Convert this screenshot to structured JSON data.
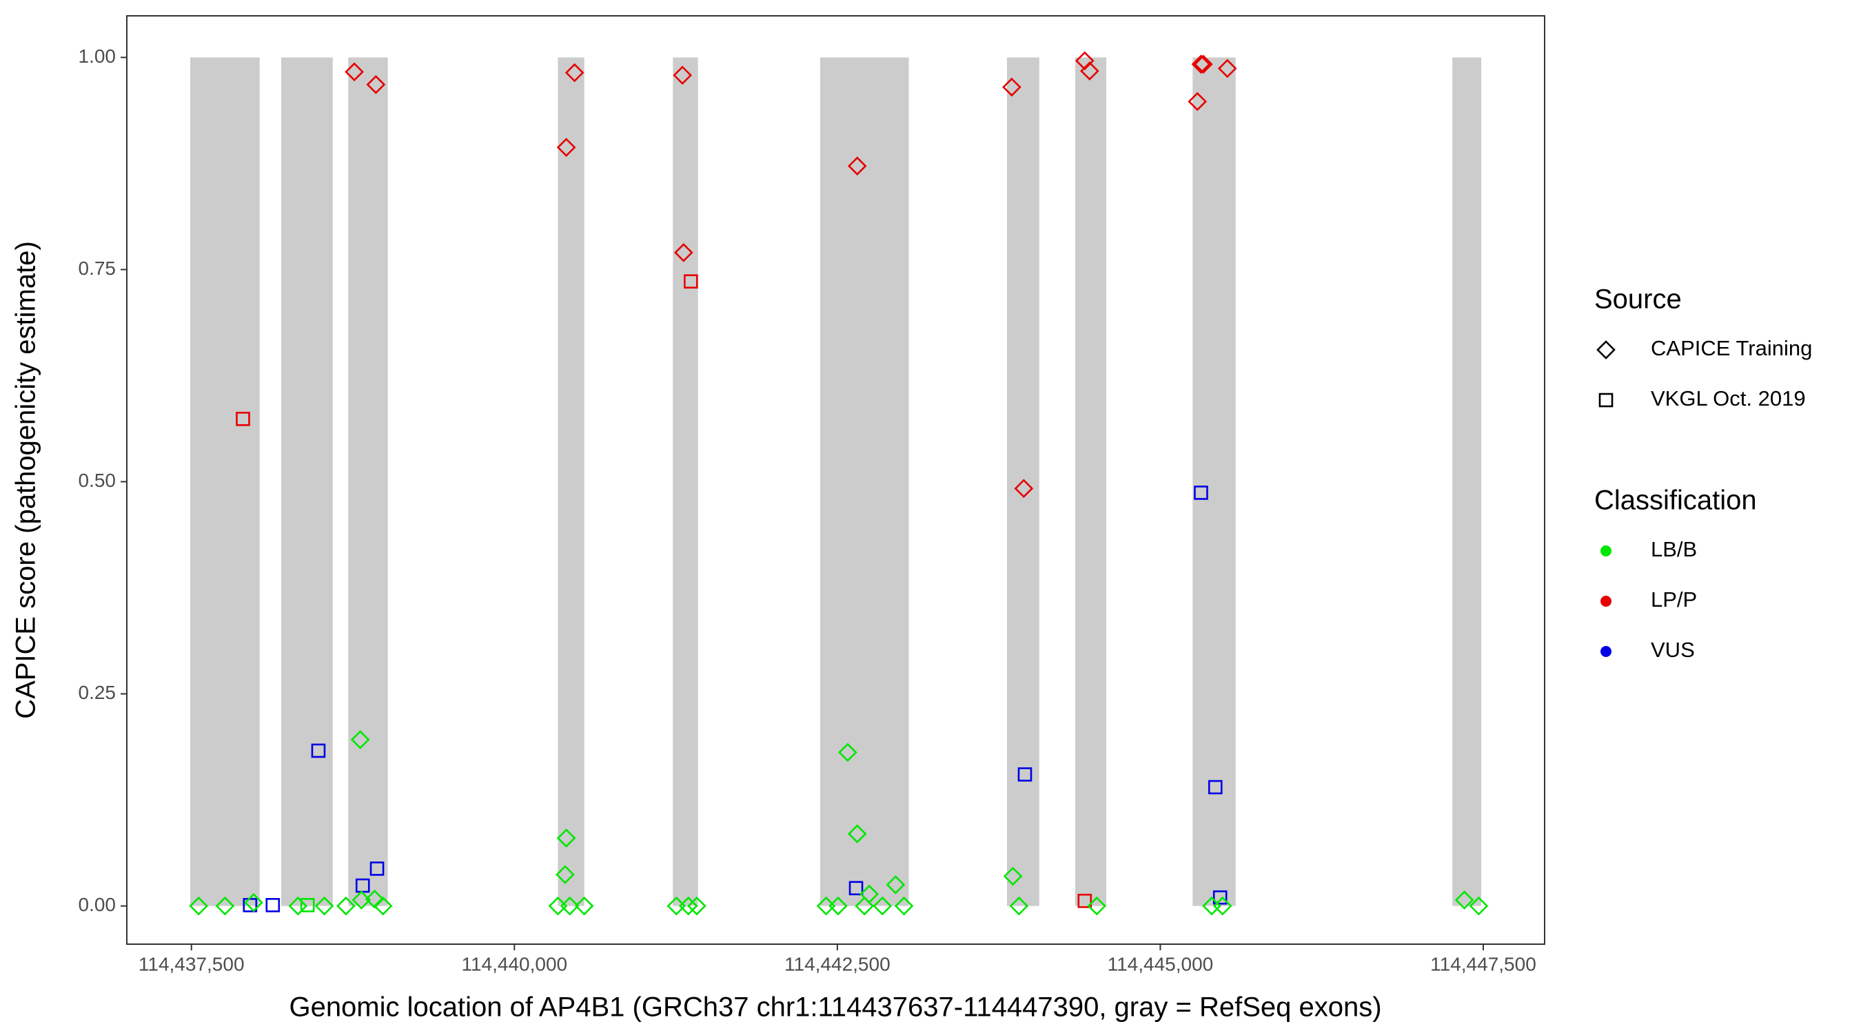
{
  "chart_data": {
    "type": "scatter",
    "xlabel": "Genomic location of AP4B1 (GRCh37 chr1:114437637-114447390, gray = RefSeq exons)",
    "ylabel": "CAPICE score (pathogenicity estimate)",
    "xlim": [
      114437000,
      114447975
    ],
    "ylim": [
      -0.045,
      1.049
    ],
    "xticks": [
      {
        "value": 114437500,
        "label": "114,437,500"
      },
      {
        "value": 114440000,
        "label": "114,440,000"
      },
      {
        "value": 114442500,
        "label": "114,442,500"
      },
      {
        "value": 114445000,
        "label": "114,445,000"
      },
      {
        "value": 114447500,
        "label": "114,447,500"
      }
    ],
    "yticks": [
      {
        "value": 0,
        "label": "0.00"
      },
      0.25,
      {
        "value": 0.5,
        "label": "0.50"
      },
      0.75,
      {
        "value": 1,
        "label": "1.00"
      }
    ],
    "exon_color": "#cccccc",
    "exons": [
      [
        114437491,
        114438028
      ],
      [
        114438195,
        114438594
      ],
      [
        114438714,
        114439020
      ],
      [
        114440337,
        114440541
      ],
      [
        114441227,
        114441421
      ],
      [
        114442367,
        114443053
      ],
      [
        114443813,
        114444063
      ],
      [
        114444341,
        114444582
      ],
      [
        114445250,
        114445583
      ],
      [
        114447261,
        114447484
      ]
    ],
    "source_title": "Source",
    "sources": [
      {
        "name": "CAPICE Training",
        "shape": "diamond"
      },
      {
        "name": "VKGL Oct. 2019",
        "shape": "square"
      }
    ],
    "classification_title": "Classification",
    "classes": [
      {
        "name": "LB/B",
        "color": "#00e600"
      },
      {
        "name": "LP/P",
        "color": "#e60000"
      },
      {
        "name": "VUS",
        "color": "#0000e6"
      }
    ],
    "series": [
      {
        "source": 0,
        "classification": 1,
        "x": [
          114438761,
          114438928,
          114440402,
          114440466,
          114441301,
          114441310,
          114442654,
          114443850,
          114443943,
          114444415,
          114444453,
          114445287,
          114445315,
          114445333,
          114445519
        ],
        "y": [
          0.983,
          0.968,
          0.894,
          0.982,
          0.979,
          0.77,
          0.872,
          0.965,
          0.492,
          0.996,
          0.984,
          0.948,
          0.992,
          0.992,
          0.987
        ]
      },
      {
        "source": 1,
        "classification": 1,
        "x": [
          114437899,
          114441366,
          114444415
        ],
        "y": [
          0.574,
          0.736,
          0.006
        ]
      },
      {
        "source": 1,
        "classification": 2,
        "x": [
          114438483,
          114438826,
          114438937,
          114437954,
          114438130,
          114442645,
          114443952,
          114445315,
          114445426,
          114445463
        ],
        "y": [
          0.183,
          0.024,
          0.044,
          0.001,
          0.001,
          0.021,
          0.155,
          0.487,
          0.14,
          0.01
        ]
      },
      {
        "source": 1,
        "classification": 0,
        "x": [
          114438399
        ],
        "y": [
          0.001
        ]
      },
      {
        "source": 0,
        "classification": 0,
        "x": [
          114437556,
          114437760,
          114437982,
          114438325,
          114438529,
          114438696,
          114438807,
          114438816,
          114438918,
          114438983,
          114440402,
          114440393,
          114440337,
          114440429,
          114440541,
          114441254,
          114441347,
          114441412,
          114442580,
          114442654,
          114442413,
          114442506,
          114442710,
          114442747,
          114442849,
          114442951,
          114443016,
          114443859,
          114443906,
          114444508,
          114445398,
          114445482,
          114447354,
          114447465
        ],
        "y": [
          0,
          0,
          0.004,
          0,
          0,
          0,
          0.196,
          0.007,
          0.008,
          0,
          0.08,
          0.037,
          0,
          0,
          0,
          0,
          0,
          0,
          0.181,
          0.085,
          0,
          0,
          0,
          0.014,
          0,
          0.025,
          0,
          0.035,
          0,
          0,
          0,
          0,
          0.007,
          0
        ]
      }
    ]
  }
}
